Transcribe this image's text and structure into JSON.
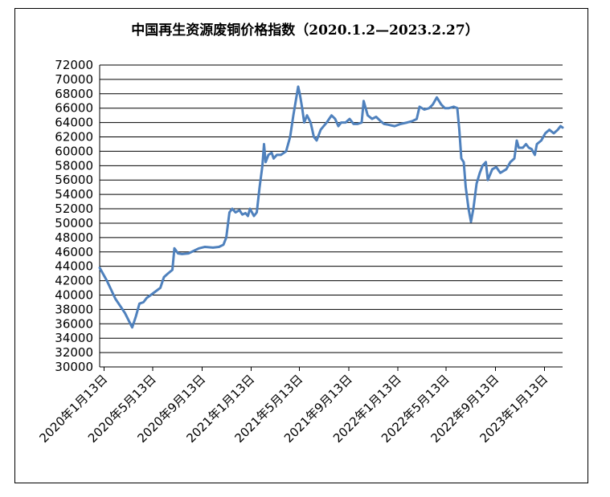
{
  "chart_data": {
    "type": "line",
    "title": "中国再生资源废铜价格指数（2020.1.2—2023.2.27）",
    "xlabel": "",
    "ylabel": "",
    "ylim": [
      30000,
      72000
    ],
    "yticks": [
      30000,
      32000,
      34000,
      36000,
      38000,
      40000,
      42000,
      44000,
      46000,
      48000,
      50000,
      52000,
      54000,
      56000,
      58000,
      60000,
      62000,
      64000,
      66000,
      68000,
      70000,
      72000
    ],
    "xlim": [
      "2020-01-02",
      "2023-02-27"
    ],
    "xticks": [
      {
        "date": "2020-01-13",
        "label": "2020年1月13日"
      },
      {
        "date": "2020-05-13",
        "label": "2020年5月13日"
      },
      {
        "date": "2020-09-13",
        "label": "2020年9月13日"
      },
      {
        "date": "2021-01-13",
        "label": "2021年1月13日"
      },
      {
        "date": "2021-05-13",
        "label": "2021年5月13日"
      },
      {
        "date": "2021-09-13",
        "label": "2021年9月13日"
      },
      {
        "date": "2022-01-13",
        "label": "2022年1月13日"
      },
      {
        "date": "2022-05-13",
        "label": "2022年5月13日"
      },
      {
        "date": "2022-09-13",
        "label": "2022年9月13日"
      },
      {
        "date": "2023-01-13",
        "label": "2023年1月13日"
      }
    ],
    "grid": true,
    "line_color": "#4f81bd",
    "series": [
      {
        "name": "",
        "points": [
          [
            "2020-01-02",
            43800
          ],
          [
            "2020-01-20",
            42000
          ],
          [
            "2020-02-10",
            39500
          ],
          [
            "2020-03-05",
            37500
          ],
          [
            "2020-03-23",
            35500
          ],
          [
            "2020-04-01",
            37000
          ],
          [
            "2020-04-10",
            38800
          ],
          [
            "2020-04-20",
            39000
          ],
          [
            "2020-04-28",
            39600
          ],
          [
            "2020-05-08",
            40000
          ],
          [
            "2020-05-20",
            40500
          ],
          [
            "2020-06-01",
            41000
          ],
          [
            "2020-06-10",
            42500
          ],
          [
            "2020-06-20",
            43000
          ],
          [
            "2020-07-01",
            43500
          ],
          [
            "2020-07-06",
            46500
          ],
          [
            "2020-07-15",
            45800
          ],
          [
            "2020-07-25",
            45700
          ],
          [
            "2020-08-10",
            45800
          ],
          [
            "2020-08-25",
            46200
          ],
          [
            "2020-09-05",
            46500
          ],
          [
            "2020-09-20",
            46700
          ],
          [
            "2020-10-10",
            46600
          ],
          [
            "2020-10-25",
            46700
          ],
          [
            "2020-11-05",
            47000
          ],
          [
            "2020-11-12",
            48000
          ],
          [
            "2020-11-20",
            51500
          ],
          [
            "2020-11-27",
            52000
          ],
          [
            "2020-12-05",
            51500
          ],
          [
            "2020-12-15",
            51800
          ],
          [
            "2020-12-22",
            51200
          ],
          [
            "2020-12-30",
            51400
          ],
          [
            "2021-01-05",
            51000
          ],
          [
            "2021-01-10",
            52000
          ],
          [
            "2021-01-15",
            51500
          ],
          [
            "2021-01-20",
            51000
          ],
          [
            "2021-01-27",
            51500
          ],
          [
            "2021-02-03",
            55000
          ],
          [
            "2021-02-10",
            58000
          ],
          [
            "2021-02-14",
            61000
          ],
          [
            "2021-02-18",
            58500
          ],
          [
            "2021-02-25",
            59500
          ],
          [
            "2021-03-05",
            59800
          ],
          [
            "2021-03-10",
            59000
          ],
          [
            "2021-03-18",
            59500
          ],
          [
            "2021-03-28",
            59500
          ],
          [
            "2021-04-10",
            60000
          ],
          [
            "2021-04-20",
            62000
          ],
          [
            "2021-04-28",
            65000
          ],
          [
            "2021-05-10",
            69000
          ],
          [
            "2021-05-14",
            68000
          ],
          [
            "2021-05-20",
            66000
          ],
          [
            "2021-05-25",
            64000
          ],
          [
            "2021-06-01",
            65000
          ],
          [
            "2021-06-10",
            64000
          ],
          [
            "2021-06-18",
            62000
          ],
          [
            "2021-06-25",
            61500
          ],
          [
            "2021-07-05",
            63000
          ],
          [
            "2021-07-20",
            64000
          ],
          [
            "2021-08-01",
            65000
          ],
          [
            "2021-08-10",
            64500
          ],
          [
            "2021-08-18",
            63500
          ],
          [
            "2021-08-25",
            64000
          ],
          [
            "2021-09-05",
            64000
          ],
          [
            "2021-09-15",
            64500
          ],
          [
            "2021-09-25",
            63800
          ],
          [
            "2021-10-05",
            63800
          ],
          [
            "2021-10-15",
            64000
          ],
          [
            "2021-10-20",
            67000
          ],
          [
            "2021-10-30",
            65000
          ],
          [
            "2021-11-10",
            64500
          ],
          [
            "2021-11-20",
            64800
          ],
          [
            "2021-12-01",
            64200
          ],
          [
            "2021-12-10",
            63800
          ],
          [
            "2021-12-20",
            63700
          ],
          [
            "2022-01-05",
            63500
          ],
          [
            "2022-01-20",
            63800
          ],
          [
            "2022-02-05",
            64000
          ],
          [
            "2022-02-18",
            64200
          ],
          [
            "2022-03-01",
            64500
          ],
          [
            "2022-03-08",
            66200
          ],
          [
            "2022-03-20",
            65800
          ],
          [
            "2022-04-01",
            66000
          ],
          [
            "2022-04-10",
            66500
          ],
          [
            "2022-04-20",
            67500
          ],
          [
            "2022-05-01",
            66500
          ],
          [
            "2022-05-10",
            66000
          ],
          [
            "2022-05-20",
            66000
          ],
          [
            "2022-06-01",
            66200
          ],
          [
            "2022-06-10",
            66000
          ],
          [
            "2022-06-15",
            63000
          ],
          [
            "2022-06-20",
            59000
          ],
          [
            "2022-06-26",
            58500
          ],
          [
            "2022-07-01",
            55000
          ],
          [
            "2022-07-08",
            52000
          ],
          [
            "2022-07-14",
            50200
          ],
          [
            "2022-07-20",
            52000
          ],
          [
            "2022-07-28",
            55500
          ],
          [
            "2022-08-05",
            57000
          ],
          [
            "2022-08-12",
            58000
          ],
          [
            "2022-08-20",
            58500
          ],
          [
            "2022-08-25",
            56000
          ],
          [
            "2022-09-05",
            57500
          ],
          [
            "2022-09-15",
            57800
          ],
          [
            "2022-09-25",
            57000
          ],
          [
            "2022-10-10",
            57500
          ],
          [
            "2022-10-20",
            58500
          ],
          [
            "2022-10-30",
            59000
          ],
          [
            "2022-11-05",
            61500
          ],
          [
            "2022-11-10",
            60500
          ],
          [
            "2022-11-20",
            60500
          ],
          [
            "2022-11-28",
            61000
          ],
          [
            "2022-12-05",
            60500
          ],
          [
            "2022-12-12",
            60300
          ],
          [
            "2022-12-20",
            59500
          ],
          [
            "2022-12-25",
            61000
          ],
          [
            "2023-01-05",
            61500
          ],
          [
            "2023-01-15",
            62500
          ],
          [
            "2023-01-25",
            63000
          ],
          [
            "2023-02-05",
            62500
          ],
          [
            "2023-02-15",
            63000
          ],
          [
            "2023-02-22",
            63500
          ],
          [
            "2023-02-27",
            63300
          ]
        ]
      }
    ]
  }
}
